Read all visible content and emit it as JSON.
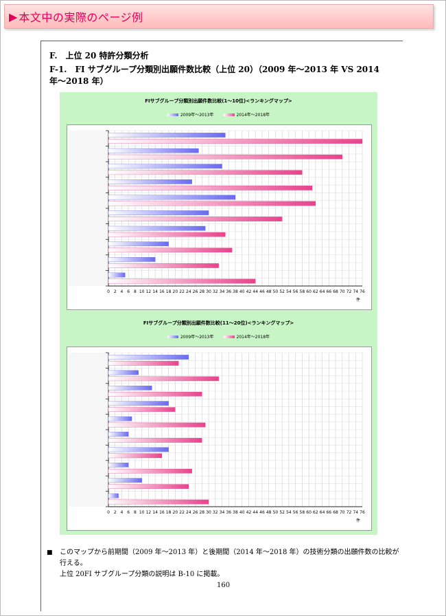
{
  "banner": {
    "title": "本文中の実際のページ例"
  },
  "section": {
    "heading1": "F.　上位 20 特許分類分析",
    "heading2": "F-1.　FI サブグループ分類別出願件数比較（上位 20）（2009 年〜2013 年 VS 2014 年〜2018 年）"
  },
  "colors": {
    "series1": "#6a6af0",
    "series2": "#e8438c",
    "panel": "#c8f5c6",
    "banner_text": "#e0005b"
  },
  "chart_data": [
    {
      "type": "bar",
      "orientation": "horizontal",
      "title": "FIサブグループ分類別出願件数比較(1〜10位)<ランキングマップ>",
      "xlabel": "件",
      "xlim": [
        0,
        76
      ],
      "xticks": [
        0,
        2,
        4,
        6,
        8,
        10,
        12,
        14,
        16,
        18,
        20,
        22,
        24,
        26,
        28,
        30,
        32,
        34,
        36,
        38,
        40,
        42,
        44,
        46,
        48,
        50,
        52,
        54,
        56,
        58,
        60,
        62,
        64,
        66,
        68,
        70,
        72,
        74,
        76
      ],
      "grid": true,
      "legend_position": "top",
      "series": [
        {
          "name": "2009年〜2013年",
          "values": [
            35,
            27,
            34,
            25,
            38,
            30,
            29,
            18,
            14,
            5
          ]
        },
        {
          "name": "2014年〜2018年",
          "values": [
            76,
            70,
            58,
            61,
            62,
            52,
            35,
            37,
            33,
            44
          ]
        }
      ]
    },
    {
      "type": "bar",
      "orientation": "horizontal",
      "title": "FIサブグループ分類別出願件数比較(11〜20位)<ランキングマップ>",
      "xlabel": "件",
      "xlim": [
        0,
        76
      ],
      "xticks": [
        0,
        2,
        4,
        6,
        8,
        10,
        12,
        14,
        16,
        18,
        20,
        22,
        24,
        26,
        28,
        30,
        32,
        34,
        36,
        38,
        40,
        42,
        44,
        46,
        48,
        50,
        52,
        54,
        56,
        58,
        60,
        62,
        64,
        66,
        68,
        70,
        72,
        74,
        76
      ],
      "grid": true,
      "legend_position": "top",
      "series": [
        {
          "name": "2009年〜2013年",
          "values": [
            24,
            9,
            13,
            18,
            7,
            6,
            18,
            6,
            10,
            3
          ]
        },
        {
          "name": "2014年〜2018年",
          "values": [
            21,
            33,
            28,
            20,
            29,
            28,
            16,
            25,
            24,
            30
          ]
        }
      ]
    }
  ],
  "note": {
    "bullet": "■",
    "line1": "このマップから前期間（2009 年〜2013 年）と後期間（2014 年〜2018 年）の技術分類の出願件数の比較が行える。",
    "line2": "上位 20FI サブグループ分類の説明は B-10 に掲載。"
  },
  "page_number": "160"
}
